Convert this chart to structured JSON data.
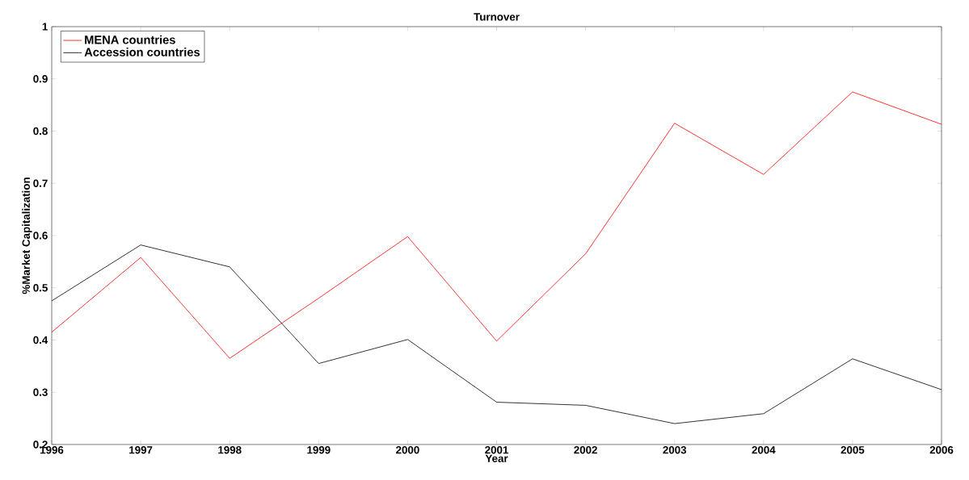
{
  "chart_data": {
    "type": "line",
    "title": "Turnover",
    "xlabel": "Year",
    "ylabel": "%Market Capitalization",
    "x": [
      1996,
      1997,
      1998,
      1999,
      2000,
      2001,
      2002,
      2003,
      2004,
      2005,
      2006
    ],
    "series": [
      {
        "name": "MENA countries",
        "color": "#ff0000",
        "values": [
          0.415,
          0.558,
          0.365,
          0.48,
          0.598,
          0.398,
          0.565,
          0.815,
          0.717,
          0.875,
          0.813
        ]
      },
      {
        "name": "Accession countries",
        "color": "#000000",
        "values": [
          0.475,
          0.582,
          0.54,
          0.355,
          0.401,
          0.281,
          0.275,
          0.24,
          0.259,
          0.364,
          0.305
        ]
      }
    ],
    "xlim": [
      1996,
      2006
    ],
    "ylim": [
      0.2,
      1
    ],
    "xticks": [
      1996,
      1997,
      1998,
      1999,
      2000,
      2001,
      2002,
      2003,
      2004,
      2005,
      2006
    ],
    "yticks": [
      0.2,
      0.3,
      0.4,
      0.5,
      0.6,
      0.7,
      0.8,
      0.9,
      1
    ],
    "legend": "top left",
    "grid": false,
    "marker": "none",
    "line_style": "solid"
  }
}
